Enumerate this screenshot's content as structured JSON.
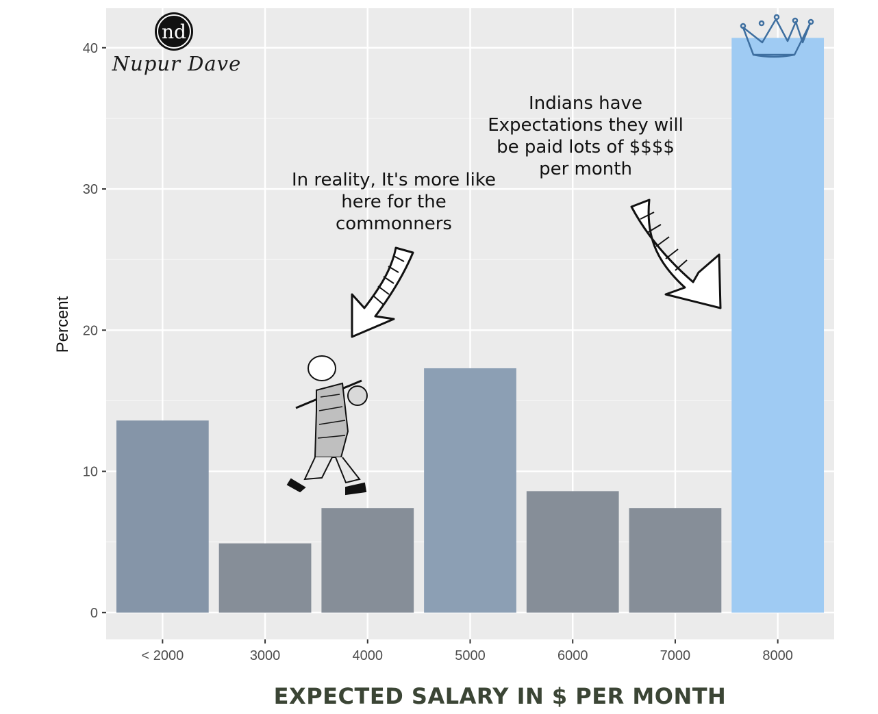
{
  "chart_data": {
    "type": "bar",
    "categories": [
      "< 2000",
      "3000",
      "4000",
      "5000",
      "6000",
      "7000",
      "8000"
    ],
    "values": [
      13.6,
      4.9,
      7.4,
      17.3,
      8.6,
      7.4,
      40.7
    ],
    "xlabel": "EXPECTED SALARY IN $ PER MONTH",
    "ylabel": "Percent",
    "ylim": [
      -1.9,
      42.8
    ],
    "yticks": [
      0,
      10,
      20,
      30,
      40
    ],
    "grid": true,
    "legend": "none",
    "bar_colors": [
      "#8595a8",
      "#868e98",
      "#868e98",
      "#8c9fb4",
      "#868e98",
      "#868e98",
      "#9fcbf3"
    ],
    "panel_color": "#ebebeb",
    "annotations": [
      {
        "text": "In reality, It's more like here for the commonners",
        "points_to": "4000"
      },
      {
        "text": "Indians have Expectations they will be paid lots of $$$$ per month",
        "points_to": "8000"
      }
    ]
  },
  "branding": {
    "monogram": "nd",
    "signature": "Nupur Dave"
  },
  "icons": [
    "crown-icon",
    "walking-man-illustration",
    "arrow-icon",
    "logo-icon"
  ]
}
